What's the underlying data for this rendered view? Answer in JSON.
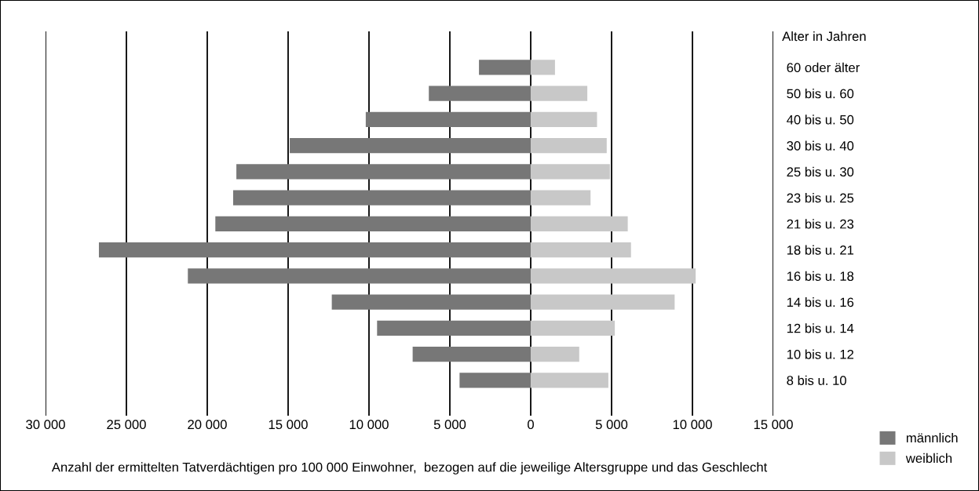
{
  "chart_data": {
    "type": "bar",
    "orientation": "horizontal",
    "xlabel": "Anzahl der ermittelten Tatverdächtigen pro 100 000 Einwohner,  bezogen auf die jeweilige Altersgruppe und das Geschlecht",
    "ylabel": "Alter in Jahren",
    "categories": [
      "60 oder älter",
      "50 bis u. 60",
      "40 bis u. 50",
      "30 bis u. 40",
      "25 bis u. 30",
      "23 bis u. 25",
      "21 bis u. 23",
      "18 bis u. 21",
      "16 bis u. 18",
      "14 bis u. 16",
      "12 bis u. 14",
      "10 bis u. 12",
      "8 bis u. 10"
    ],
    "series": [
      {
        "name": "männlich",
        "color": "#777777",
        "values": [
          -3200,
          -6300,
          -10200,
          -14900,
          -18200,
          -18400,
          -19500,
          -26700,
          -21200,
          -12300,
          -9500,
          -7300,
          -4400
        ]
      },
      {
        "name": "weiblich",
        "color": "#c8c8c8",
        "values": [
          1500,
          3500,
          4100,
          4700,
          4900,
          3700,
          6000,
          6200,
          10200,
          8900,
          5200,
          3000,
          4800
        ]
      }
    ],
    "xlim": [
      -30000,
      15000
    ],
    "xticks": [
      {
        "value": -30000,
        "label": "30 000"
      },
      {
        "value": -25000,
        "label": "25 000"
      },
      {
        "value": -20000,
        "label": "20 000"
      },
      {
        "value": -15000,
        "label": "15 000"
      },
      {
        "value": -10000,
        "label": "10 000"
      },
      {
        "value": -5000,
        "label": "5 000"
      },
      0,
      {
        "value": 5000,
        "label": "5 000"
      },
      {
        "value": 10000,
        "label": "10 000"
      },
      {
        "value": 15000,
        "label": "15 000"
      }
    ],
    "stacked": true,
    "grid": "x",
    "legend": "bottom right"
  }
}
